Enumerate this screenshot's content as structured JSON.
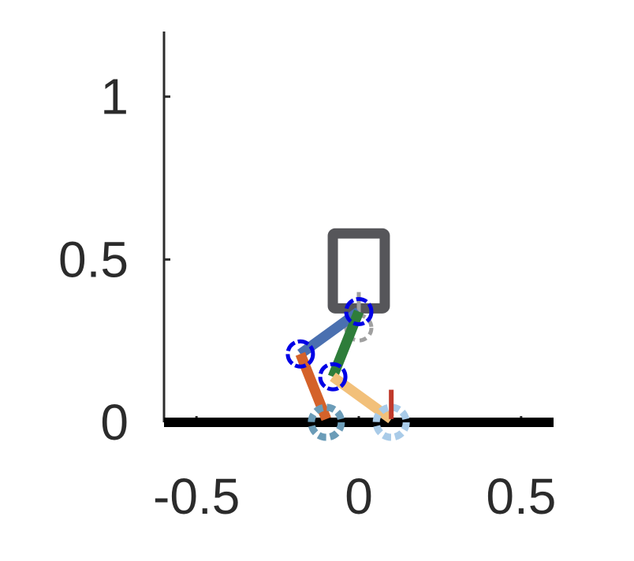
{
  "chart_data": {
    "type": "scatter",
    "xlim": [
      -0.6,
      0.6
    ],
    "ylim": [
      0,
      1.2
    ],
    "xticks": [
      {
        "value": -0.5,
        "label": "-0.5"
      },
      {
        "value": 0,
        "label": "0"
      },
      {
        "value": 0.5,
        "label": "0.5"
      }
    ],
    "yticks": [
      {
        "value": 0,
        "label": "0"
      },
      {
        "value": 0.5,
        "label": "0.5"
      },
      {
        "value": 1,
        "label": "1"
      }
    ],
    "ground": {
      "x": [
        -0.6,
        0.6
      ],
      "y": 0,
      "color": "#000000"
    },
    "body": {
      "x": [
        -0.08,
        0.08
      ],
      "y": [
        0.35,
        0.58
      ],
      "color": "#56565a"
    },
    "hip_dashed": {
      "x": 0,
      "y": 0.29,
      "color": "#a0a0a0"
    },
    "links": [
      {
        "name": "",
        "x": [
          0,
          -0.18
        ],
        "y": [
          0.34,
          0.21
        ],
        "color": "#4a70b0"
      },
      {
        "name": "",
        "x": [
          -0.18,
          -0.1
        ],
        "y": [
          0.21,
          0.01
        ],
        "color": "#d4622a"
      },
      {
        "name": "",
        "x": [
          0,
          -0.08
        ],
        "y": [
          0.34,
          0.14
        ],
        "color": "#2e7d3a"
      },
      {
        "name": "",
        "x": [
          -0.08,
          0.1
        ],
        "y": [
          0.14,
          0.01
        ],
        "color": "#f2c07a"
      }
    ],
    "joints": [
      {
        "x": 0,
        "y": 0.34
      },
      {
        "x": -0.18,
        "y": 0.21
      },
      {
        "x": -0.08,
        "y": 0.14
      }
    ],
    "joint_color": "#0000e6",
    "feet": [
      {
        "x": -0.1,
        "y": 0,
        "color": "#6b9cb8"
      },
      {
        "x": 0.1,
        "y": 0,
        "color": "#a9cbe8"
      }
    ],
    "force_arrow": {
      "x": 0.1,
      "y0": 0.01,
      "y1": 0.1,
      "color": "#c0392b"
    }
  }
}
